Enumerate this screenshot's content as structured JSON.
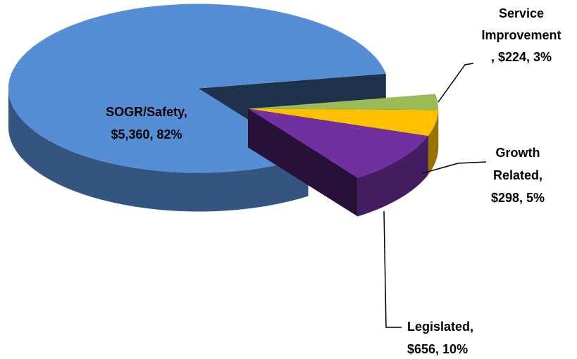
{
  "chart_data": {
    "type": "pie3d",
    "categories": [
      "SOGR/Safety",
      "Legislated",
      "Growth Related",
      "Service Improvement"
    ],
    "values": [
      82,
      10,
      5,
      3
    ],
    "value_labels": [
      "82%",
      "10%",
      "5%",
      "3%"
    ],
    "amounts": [
      5360,
      656,
      298,
      224
    ],
    "amount_labels": [
      "$5,360",
      "$656",
      "$298",
      "$224"
    ],
    "labels": [
      [
        "SOGR/Safety,",
        "$5,360, 82%"
      ],
      [
        "Legislated,",
        "$656, 10%"
      ],
      [
        "Growth",
        "Related,",
        "$298, 5%"
      ],
      [
        "Service",
        "Improvement",
        ", $224, 3%"
      ]
    ],
    "colors": [
      "#558ed5",
      "#7030a0",
      "#ffc000",
      "#9bbb59"
    ]
  }
}
